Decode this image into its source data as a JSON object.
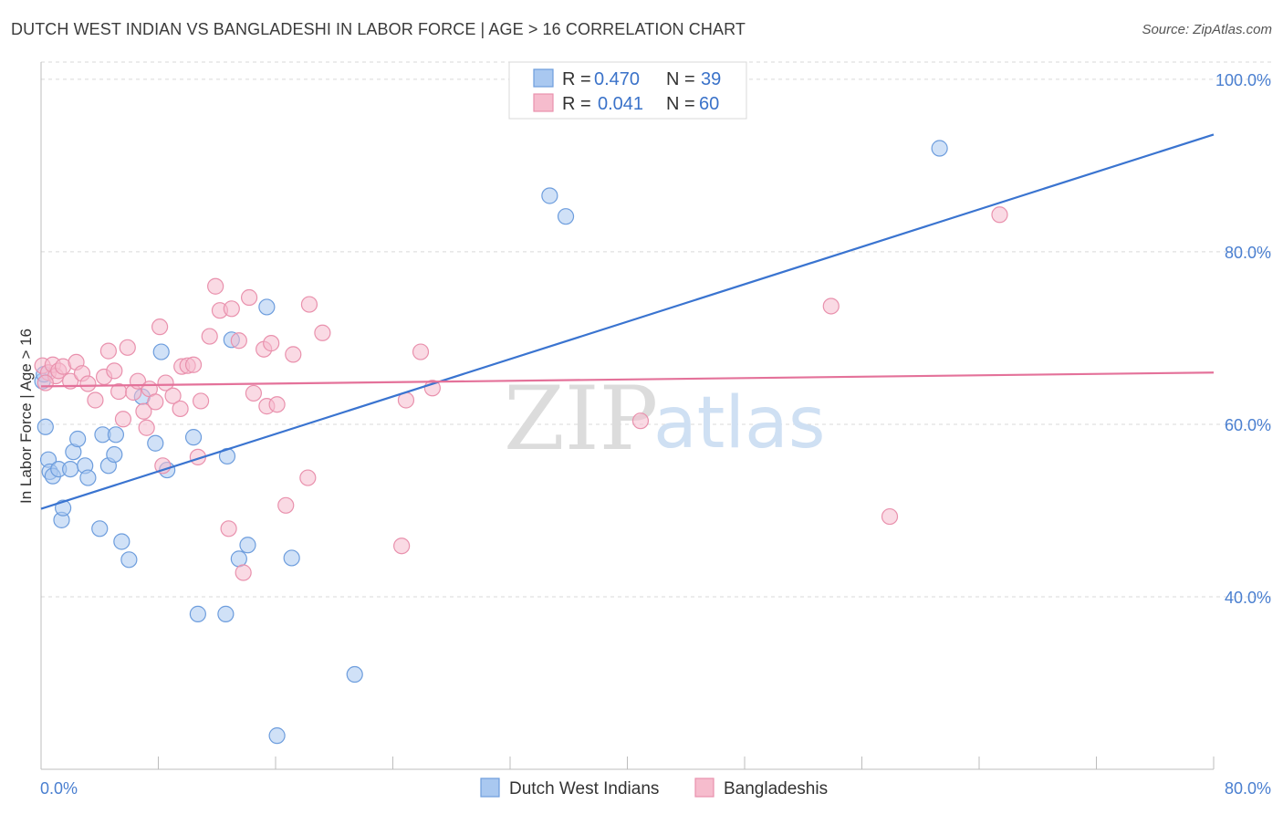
{
  "title": "DUTCH WEST INDIAN VS BANGLADESHI IN LABOR FORCE | AGE > 16 CORRELATION CHART",
  "source": "Source: ZipAtlas.com",
  "watermark": {
    "part1": "ZIP",
    "part2": "atlas"
  },
  "colors": {
    "blue_fill": "#a9c8f0",
    "blue_stroke": "#6d9ddd",
    "blue_line": "#3a74d0",
    "pink_fill": "#f6bccd",
    "pink_stroke": "#e991ad",
    "pink_line": "#e4729a",
    "grid": "#d9d9d9",
    "tick_label": "#4a7fd0"
  },
  "legend": {
    "r_label": "R =",
    "n_label": "N =",
    "rows": [
      {
        "series": "Dutch West Indians",
        "r": "0.470",
        "n": "39"
      },
      {
        "series": "Bangladeshis",
        "r": "0.041",
        "n": "60"
      }
    ]
  },
  "chart_data": {
    "type": "scatter",
    "title": "DUTCH WEST INDIAN VS BANGLADESHI IN LABOR FORCE | AGE > 16 CORRELATION CHART",
    "xlabel": "",
    "ylabel": "In Labor Force | Age > 16",
    "xlim": [
      0,
      80
    ],
    "ylim": [
      20,
      102
    ],
    "x_tick_labels": [
      "0.0%",
      "80.0%"
    ],
    "y_ticks": [
      40,
      60,
      80,
      100
    ],
    "y_tick_labels": [
      "40.0%",
      "60.0%",
      "80.0%",
      "100.0%"
    ],
    "grid": true,
    "legend_position": "bottom-center",
    "series": [
      {
        "name": "Dutch West Indians",
        "trend": {
          "x": [
            0,
            80
          ],
          "y": [
            50.2,
            93.6
          ]
        },
        "points": [
          [
            0.1,
            65.0
          ],
          [
            0.3,
            59.7
          ],
          [
            0.5,
            55.9
          ],
          [
            0.6,
            54.5
          ],
          [
            0.8,
            54.0
          ],
          [
            1.2,
            54.8
          ],
          [
            1.4,
            48.9
          ],
          [
            1.5,
            50.3
          ],
          [
            2.0,
            54.8
          ],
          [
            2.2,
            56.8
          ],
          [
            2.5,
            58.3
          ],
          [
            3.0,
            55.2
          ],
          [
            3.2,
            53.8
          ],
          [
            4.0,
            47.9
          ],
          [
            4.2,
            58.8
          ],
          [
            4.6,
            55.2
          ],
          [
            5.0,
            56.5
          ],
          [
            5.1,
            58.8
          ],
          [
            5.5,
            46.4
          ],
          [
            6.0,
            44.3
          ],
          [
            6.9,
            63.2
          ],
          [
            7.8,
            57.8
          ],
          [
            8.2,
            68.4
          ],
          [
            8.6,
            54.7
          ],
          [
            10.4,
            58.5
          ],
          [
            10.7,
            38.0
          ],
          [
            12.6,
            38.0
          ],
          [
            12.7,
            56.3
          ],
          [
            13.0,
            69.8
          ],
          [
            13.5,
            44.4
          ],
          [
            14.1,
            46.0
          ],
          [
            15.4,
            73.6
          ],
          [
            16.1,
            23.9
          ],
          [
            17.1,
            44.5
          ],
          [
            21.4,
            31.0
          ],
          [
            34.7,
            86.5
          ],
          [
            35.8,
            84.1
          ],
          [
            61.3,
            92.0
          ],
          [
            0.2,
            65.8
          ]
        ]
      },
      {
        "name": "Bangladeshis",
        "trend": {
          "x": [
            0,
            80
          ],
          "y": [
            64.4,
            66.0
          ]
        },
        "points": [
          [
            0.1,
            66.8
          ],
          [
            0.5,
            66.0
          ],
          [
            0.8,
            66.9
          ],
          [
            1.0,
            65.6
          ],
          [
            1.2,
            66.2
          ],
          [
            1.5,
            66.7
          ],
          [
            2.0,
            65.0
          ],
          [
            2.4,
            67.2
          ],
          [
            2.8,
            65.9
          ],
          [
            3.2,
            64.7
          ],
          [
            3.7,
            62.8
          ],
          [
            4.3,
            65.5
          ],
          [
            4.6,
            68.5
          ],
          [
            5.0,
            66.2
          ],
          [
            5.3,
            63.8
          ],
          [
            5.6,
            60.6
          ],
          [
            5.9,
            68.9
          ],
          [
            6.3,
            63.7
          ],
          [
            6.6,
            65.0
          ],
          [
            7.0,
            61.5
          ],
          [
            7.2,
            59.6
          ],
          [
            7.4,
            64.1
          ],
          [
            7.8,
            62.6
          ],
          [
            8.1,
            71.3
          ],
          [
            8.3,
            55.2
          ],
          [
            8.5,
            64.8
          ],
          [
            9.0,
            63.3
          ],
          [
            9.5,
            61.8
          ],
          [
            9.6,
            66.7
          ],
          [
            10.0,
            66.8
          ],
          [
            10.4,
            66.9
          ],
          [
            10.7,
            56.2
          ],
          [
            10.9,
            62.7
          ],
          [
            11.5,
            70.2
          ],
          [
            11.9,
            76.0
          ],
          [
            12.2,
            73.2
          ],
          [
            12.8,
            47.9
          ],
          [
            13.0,
            73.4
          ],
          [
            13.5,
            69.7
          ],
          [
            13.8,
            42.8
          ],
          [
            14.2,
            74.7
          ],
          [
            14.5,
            63.6
          ],
          [
            15.2,
            68.7
          ],
          [
            15.4,
            62.1
          ],
          [
            15.7,
            69.4
          ],
          [
            16.1,
            62.3
          ],
          [
            16.7,
            50.6
          ],
          [
            17.2,
            68.1
          ],
          [
            18.2,
            53.8
          ],
          [
            18.3,
            73.9
          ],
          [
            19.2,
            70.6
          ],
          [
            24.6,
            45.9
          ],
          [
            24.9,
            62.8
          ],
          [
            25.9,
            68.4
          ],
          [
            26.7,
            64.2
          ],
          [
            40.9,
            60.4
          ],
          [
            53.9,
            73.7
          ],
          [
            57.9,
            49.3
          ],
          [
            65.4,
            84.3
          ],
          [
            0.3,
            64.8
          ]
        ]
      }
    ]
  }
}
